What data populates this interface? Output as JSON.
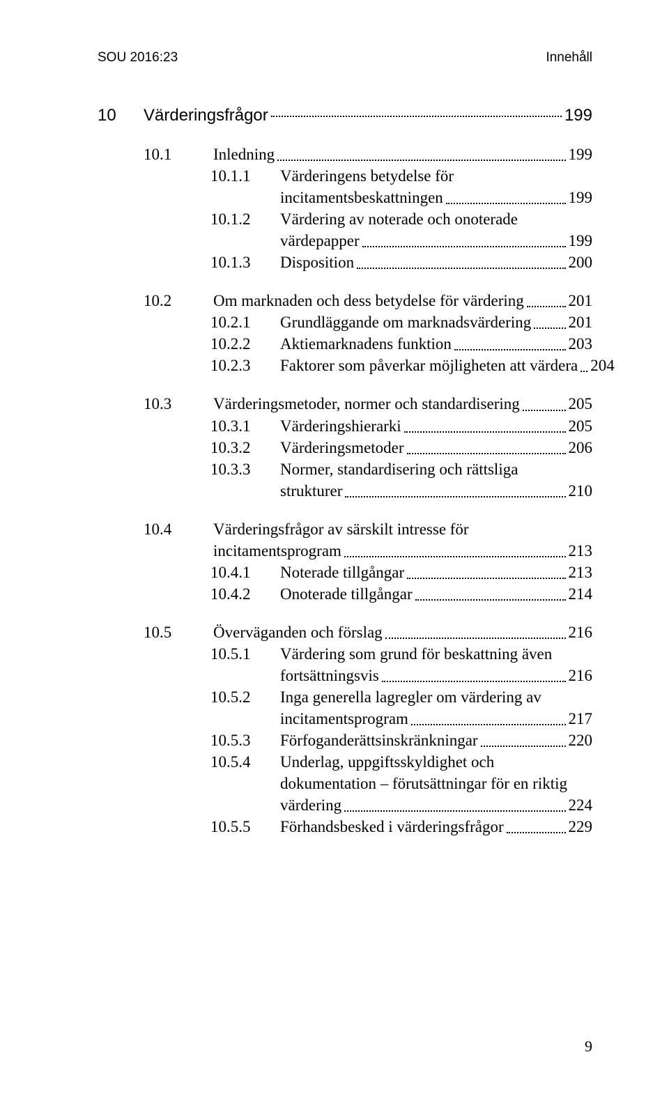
{
  "running_head": {
    "left": "SOU 2016:23",
    "right": "Innehåll"
  },
  "chapter": {
    "number": "10",
    "title": "Värderingsfrågor",
    "page": "199"
  },
  "indent": {
    "level1": 0,
    "level1_num_w": 66,
    "level2": 66,
    "level2_num_w": 96,
    "level3": 162,
    "level3_num_w": 96
  },
  "groups": [
    [
      {
        "level": 2,
        "num": "10.1",
        "title": "Inledning",
        "page": "199"
      },
      {
        "level": 3,
        "num": "10.1.1",
        "title_lines": [
          "Värderingens betydelse för",
          "incitamentsbeskattningen"
        ],
        "page": "199"
      },
      {
        "level": 3,
        "num": "10.1.2",
        "title_lines": [
          "Värdering av noterade och onoterade",
          "värdepapper"
        ],
        "page": "199"
      },
      {
        "level": 3,
        "num": "10.1.3",
        "title": "Disposition",
        "page": "200"
      }
    ],
    [
      {
        "level": 2,
        "num": "10.2",
        "title": "Om marknaden och dess betydelse för värdering",
        "page": "201"
      },
      {
        "level": 3,
        "num": "10.2.1",
        "title": "Grundläggande om marknadsvärdering",
        "page": "201"
      },
      {
        "level": 3,
        "num": "10.2.2",
        "title": "Aktiemarknadens funktion",
        "page": "203"
      },
      {
        "level": 3,
        "num": "10.2.3",
        "title": "Faktorer som påverkar möjligheten att värdera",
        "page": "204"
      }
    ],
    [
      {
        "level": 2,
        "num": "10.3",
        "title": "Värderingsmetoder, normer och standardisering",
        "page": "205"
      },
      {
        "level": 3,
        "num": "10.3.1",
        "title": "Värderingshierarki",
        "page": "205"
      },
      {
        "level": 3,
        "num": "10.3.2",
        "title": "Värderingsmetoder",
        "page": "206"
      },
      {
        "level": 3,
        "num": "10.3.3",
        "title_lines": [
          "Normer, standardisering och rättsliga",
          "strukturer"
        ],
        "page": "210"
      }
    ],
    [
      {
        "level": 2,
        "num": "10.4",
        "title_lines": [
          "Värderingsfrågor av särskilt intresse för",
          "incitamentsprogram"
        ],
        "page": "213"
      },
      {
        "level": 3,
        "num": "10.4.1",
        "title": "Noterade tillgångar",
        "page": "213"
      },
      {
        "level": 3,
        "num": "10.4.2",
        "title": "Onoterade tillgångar",
        "page": "214"
      }
    ],
    [
      {
        "level": 2,
        "num": "10.5",
        "title": "Överväganden och förslag",
        "page": "216"
      },
      {
        "level": 3,
        "num": "10.5.1",
        "title_lines": [
          "Värdering som grund för beskattning även",
          "fortsättningsvis"
        ],
        "page": "216"
      },
      {
        "level": 3,
        "num": "10.5.2",
        "title_lines": [
          "Inga generella lagregler om värdering av",
          "incitamentsprogram"
        ],
        "page": "217"
      },
      {
        "level": 3,
        "num": "10.5.3",
        "title": "Förfoganderättsinskränkningar",
        "page": "220"
      },
      {
        "level": 3,
        "num": "10.5.4",
        "title_lines": [
          "Underlag, uppgiftsskyldighet och",
          "dokumentation – förutsättningar för en riktig",
          "värdering"
        ],
        "page": "224"
      },
      {
        "level": 3,
        "num": "10.5.5",
        "title": "Förhandsbesked i värderingsfrågor",
        "page": "229"
      }
    ]
  ],
  "footer_page": "9"
}
